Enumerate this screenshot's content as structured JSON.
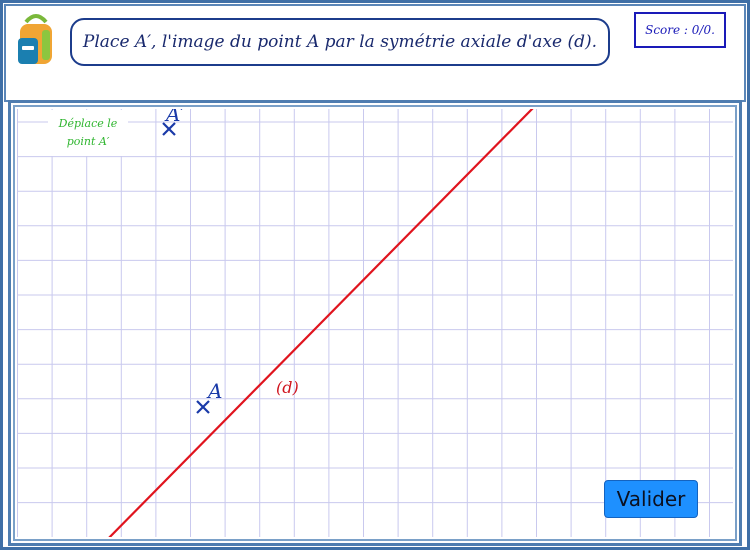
{
  "instruction": {
    "text": "Place A′, l'image du point A par la symétrie axiale d'axe (d)."
  },
  "score": {
    "text": "Score : 0/0."
  },
  "hint": {
    "line1": "Déplace le",
    "line2": "point A′"
  },
  "points": {
    "a_label": "A",
    "a_prime_label": "A′",
    "axis_label": "(d)"
  },
  "button": {
    "valider": "Valider"
  },
  "colors": {
    "grid": "#c9c9ee",
    "axis_line": "#e0141e",
    "point": "#1a3aa8",
    "hint_text": "#2fb52f",
    "button_bg": "#1e90ff",
    "frame": "#3f6fa6"
  }
}
